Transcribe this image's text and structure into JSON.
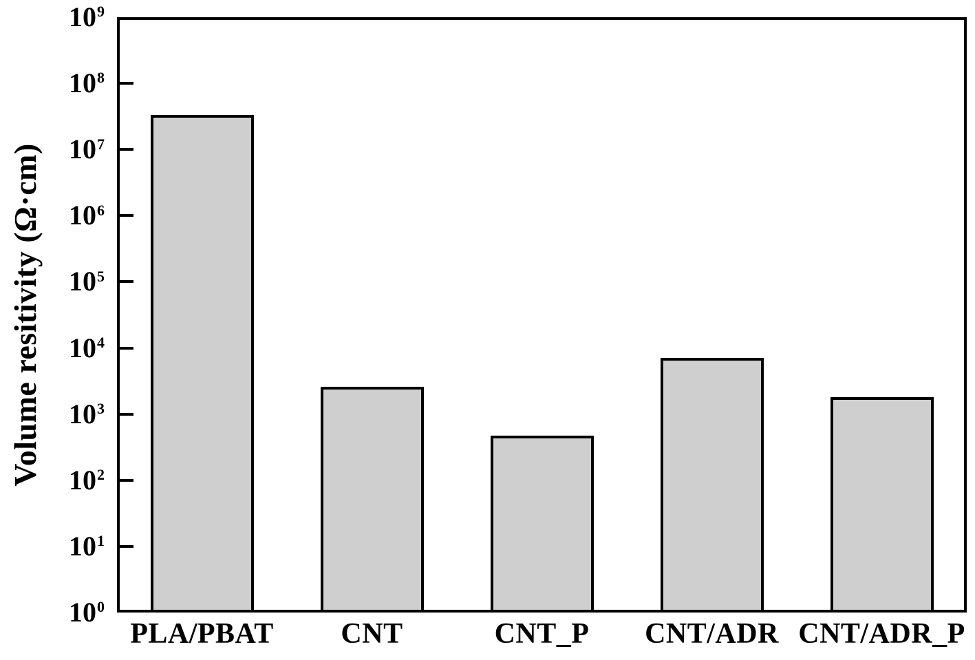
{
  "chart_data": {
    "type": "bar",
    "categories": [
      "PLA/PBAT",
      "CNT",
      "CNT_P",
      "CNT/ADR",
      "CNT/ADR_P"
    ],
    "values": [
      33000000,
      2600,
      470,
      7100,
      1800
    ],
    "title": "",
    "xlabel": "",
    "ylabel": "Volume resitivity (Ω·cm)",
    "yscale": "log",
    "ylim": [
      1,
      1000000000
    ],
    "y_tick_exponents": [
      0,
      1,
      2,
      3,
      4,
      5,
      6,
      7,
      8,
      9
    ],
    "grid": false,
    "legend": false,
    "bar_fill": "#cfcfcf",
    "bar_border": "#000000",
    "axis_color": "#000000",
    "text_color": "#000000",
    "background": "#ffffff"
  }
}
